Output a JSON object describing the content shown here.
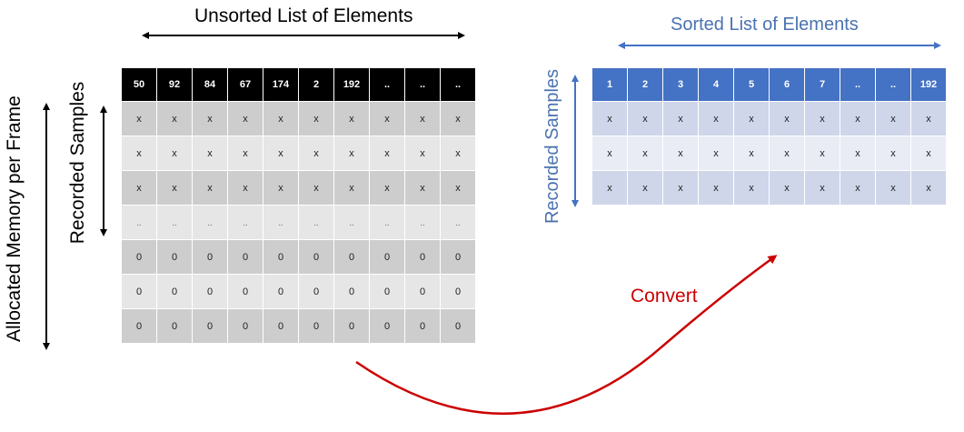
{
  "titles": {
    "unsorted": "Unsorted List of Elements",
    "sorted": "Sorted List of Elements",
    "allocated": "Allocated Memory per Frame",
    "recorded_left": "Recorded Samples",
    "recorded_right": "Recorded Samples",
    "convert": "Convert"
  },
  "colors": {
    "black": "#000000",
    "blue": "#4472c4",
    "red": "#cc0000",
    "gray_dark": "#cdcdcd",
    "gray_light": "#e6e6e6",
    "blue_dark": "#cfd6ea",
    "blue_light": "#e9ecf5"
  },
  "left_table": {
    "header": [
      "50",
      "92",
      "84",
      "67",
      "174",
      "2",
      "192",
      "..",
      "..",
      ".."
    ],
    "rows": [
      [
        "x",
        "x",
        "x",
        "x",
        "x",
        "x",
        "x",
        "x",
        "x",
        "x"
      ],
      [
        "x",
        "x",
        "x",
        "x",
        "x",
        "x",
        "x",
        "x",
        "x",
        "x"
      ],
      [
        "x",
        "x",
        "x",
        "x",
        "x",
        "x",
        "x",
        "x",
        "x",
        "x"
      ],
      [
        "..",
        "..",
        "..",
        "..",
        "..",
        "..",
        "..",
        "..",
        "..",
        ".."
      ],
      [
        "0",
        "0",
        "0",
        "0",
        "0",
        "0",
        "0",
        "0",
        "0",
        "0"
      ],
      [
        "0",
        "0",
        "0",
        "0",
        "0",
        "0",
        "0",
        "0",
        "0",
        "0"
      ],
      [
        "0",
        "0",
        "0",
        "0",
        "0",
        "0",
        "0",
        "0",
        "0",
        "0"
      ]
    ]
  },
  "right_table": {
    "header": [
      "1",
      "2",
      "3",
      "4",
      "5",
      "6",
      "7",
      "..",
      "..",
      "192"
    ],
    "rows": [
      [
        "x",
        "x",
        "x",
        "x",
        "x",
        "x",
        "x",
        "x",
        "x",
        "x"
      ],
      [
        "x",
        "x",
        "x",
        "x",
        "x",
        "x",
        "x",
        "x",
        "x",
        "x"
      ],
      [
        "x",
        "x",
        "x",
        "x",
        "x",
        "x",
        "x",
        "x",
        "x",
        "x"
      ]
    ]
  }
}
